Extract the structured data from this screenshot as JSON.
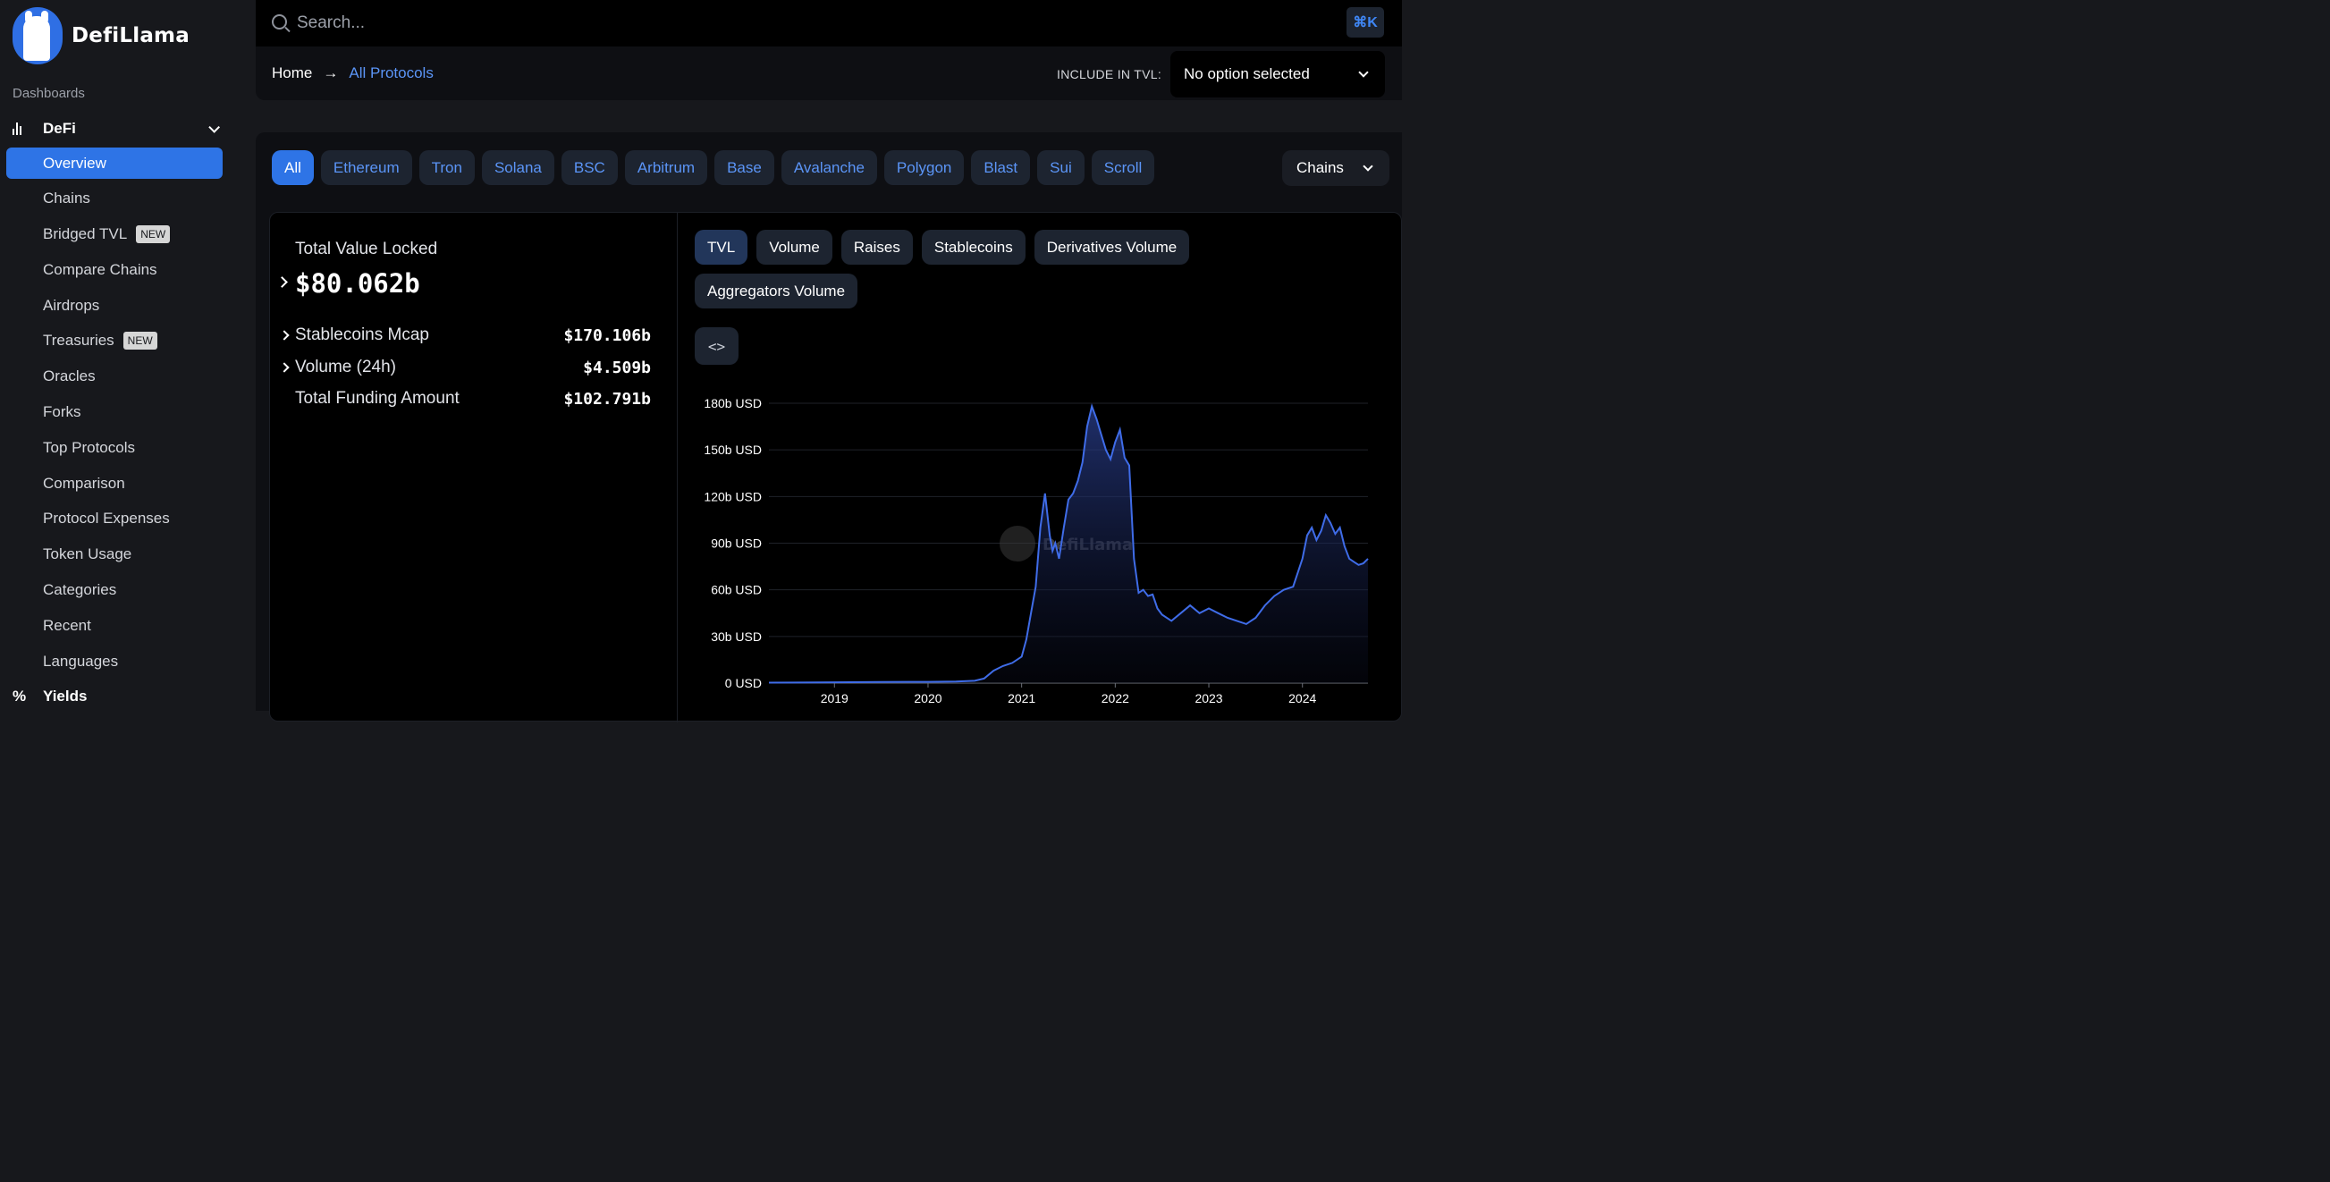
{
  "app": {
    "name": "DefiLlama"
  },
  "sidebar": {
    "section_label": "Dashboards",
    "group": {
      "label": "DeFi",
      "icon": "bar-chart-icon"
    },
    "items": [
      {
        "label": "Overview",
        "active": true,
        "badge": ""
      },
      {
        "label": "Chains",
        "badge": ""
      },
      {
        "label": "Bridged TVL",
        "badge": "NEW"
      },
      {
        "label": "Compare Chains",
        "badge": ""
      },
      {
        "label": "Airdrops",
        "badge": ""
      },
      {
        "label": "Treasuries",
        "badge": "NEW"
      },
      {
        "label": "Oracles",
        "badge": ""
      },
      {
        "label": "Forks",
        "badge": ""
      },
      {
        "label": "Top Protocols",
        "badge": ""
      },
      {
        "label": "Comparison",
        "badge": ""
      },
      {
        "label": "Protocol Expenses",
        "badge": ""
      },
      {
        "label": "Token Usage",
        "badge": ""
      },
      {
        "label": "Categories",
        "badge": ""
      },
      {
        "label": "Recent",
        "badge": ""
      },
      {
        "label": "Languages",
        "badge": ""
      }
    ],
    "next_group": {
      "label": "Yields",
      "icon": "percent-icon",
      "glyph": "%"
    }
  },
  "header": {
    "search_placeholder": "Search...",
    "shortcut": "⌘K",
    "breadcrumb": {
      "home": "Home",
      "arrow": "→",
      "current": "All Protocols"
    },
    "include_label": "INCLUDE IN TVL:",
    "include_value": "No option selected"
  },
  "chain_tabs": [
    "All",
    "Ethereum",
    "Tron",
    "Solana",
    "BSC",
    "Arbitrum",
    "Base",
    "Avalanche",
    "Polygon",
    "Blast",
    "Sui",
    "Scroll"
  ],
  "chains_dropdown": "Chains",
  "stats": {
    "tvl_label": "Total Value Locked",
    "tvl_value": "$80.062b",
    "rows": [
      {
        "label": "Stablecoins Mcap",
        "value": "$170.106b",
        "expandable": true
      },
      {
        "label": "Volume (24h)",
        "value": "$4.509b",
        "expandable": true
      },
      {
        "label": "Total Funding Amount",
        "value": "$102.791b",
        "expandable": false
      }
    ]
  },
  "metric_tabs": [
    "TVL",
    "Volume",
    "Raises",
    "Stablecoins",
    "Derivatives Volume",
    "Aggregators Volume"
  ],
  "embed_label": "<>",
  "chart_data": {
    "type": "area",
    "title": "",
    "xlabel": "",
    "ylabel": "",
    "watermark": "DefiLlama",
    "y_ticks": [
      "0 USD",
      "30b USD",
      "60b USD",
      "90b USD",
      "120b USD",
      "150b USD",
      "180b USD"
    ],
    "x_ticks": [
      "2019",
      "2020",
      "2021",
      "2022",
      "2023",
      "2024"
    ],
    "ylim": [
      0,
      180
    ],
    "xlim": [
      2018.3,
      2024.7
    ],
    "grid": true,
    "line_color": "#3f6ce8",
    "series": [
      {
        "x": [
          2018.3,
          2018.8,
          2019.0,
          2019.5,
          2020.0,
          2020.3,
          2020.5,
          2020.6,
          2020.7,
          2020.8,
          2020.9,
          2021.0,
          2021.05,
          2021.1,
          2021.15,
          2021.2,
          2021.25,
          2021.3,
          2021.33,
          2021.36,
          2021.4,
          2021.45,
          2021.5,
          2021.55,
          2021.6,
          2021.65,
          2021.7,
          2021.75,
          2021.8,
          2021.85,
          2021.9,
          2021.95,
          2022.0,
          2022.05,
          2022.1,
          2022.15,
          2022.2,
          2022.25,
          2022.3,
          2022.35,
          2022.4,
          2022.45,
          2022.5,
          2022.6,
          2022.7,
          2022.8,
          2022.9,
          2023.0,
          2023.1,
          2023.2,
          2023.3,
          2023.4,
          2023.5,
          2023.6,
          2023.7,
          2023.8,
          2023.9,
          2024.0,
          2024.05,
          2024.1,
          2024.15,
          2024.2,
          2024.25,
          2024.3,
          2024.35,
          2024.4,
          2024.45,
          2024.5,
          2024.55,
          2024.6,
          2024.65,
          2024.7
        ],
        "values": [
          0.3,
          0.4,
          0.5,
          0.7,
          0.8,
          1.0,
          1.5,
          3,
          8,
          11,
          13,
          17,
          28,
          45,
          62,
          100,
          122,
          95,
          85,
          90,
          80,
          100,
          118,
          122,
          130,
          142,
          165,
          178,
          170,
          160,
          150,
          144,
          155,
          163,
          145,
          140,
          80,
          58,
          60,
          56,
          57,
          48,
          44,
          40,
          45,
          50,
          45,
          48,
          45,
          42,
          40,
          38,
          42,
          50,
          56,
          60,
          62,
          80,
          95,
          100,
          92,
          98,
          108,
          103,
          96,
          100,
          88,
          80,
          78,
          76,
          77,
          80
        ]
      }
    ]
  }
}
